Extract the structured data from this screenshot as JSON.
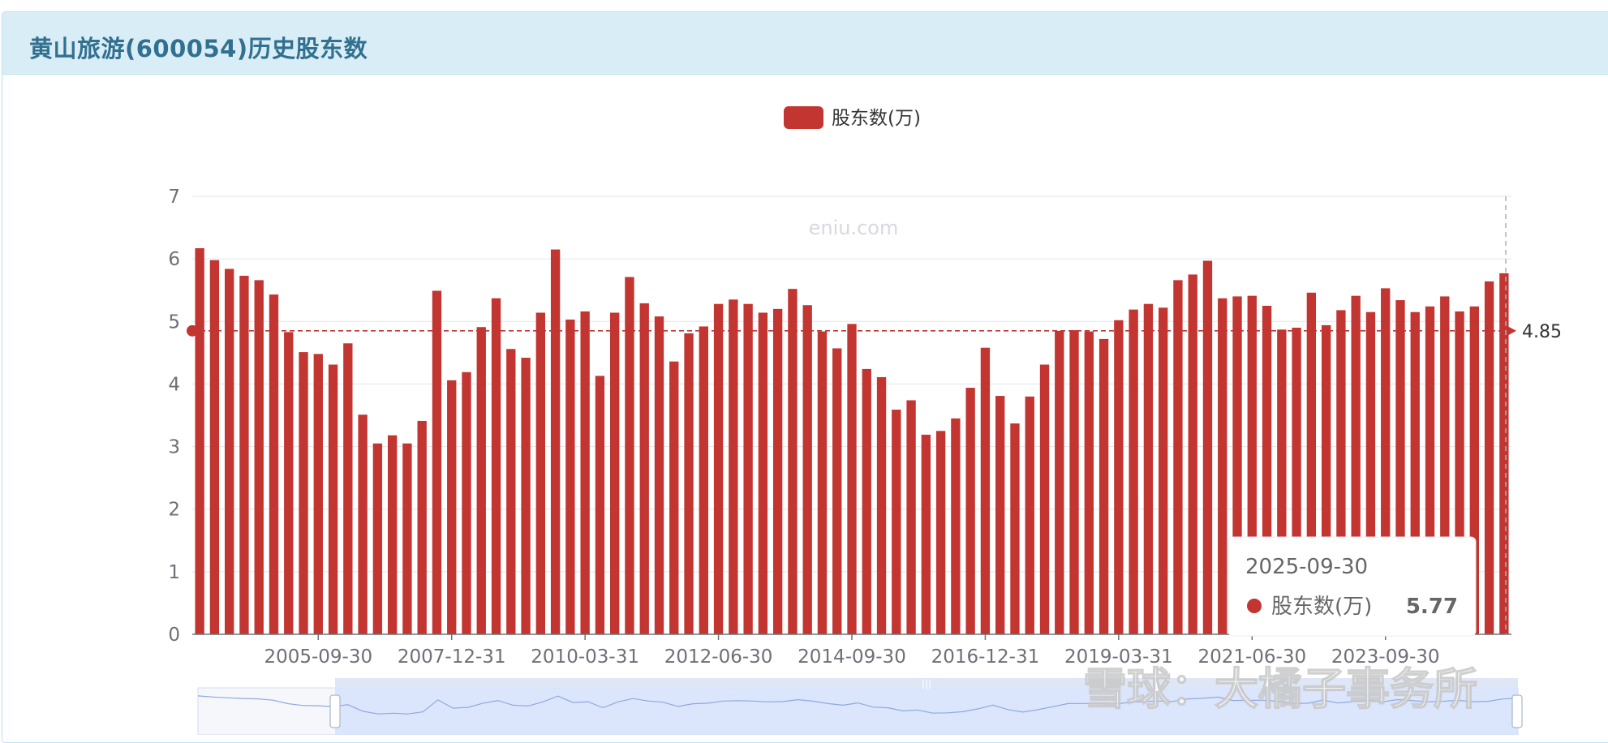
{
  "panel": {
    "title": "黄山旅游(600054)历史股东数"
  },
  "watermark_text": "eniu.com",
  "brand_watermark": "雪球：大橘子事务所",
  "colors": {
    "bar": "#c23531",
    "header_bg": "#d9edf7",
    "title": "#31708f",
    "grid": "#e0e6f1",
    "zoom_fill": "#d6e2fb"
  },
  "tooltip": {
    "date": "2025-09-30",
    "series": "股东数(万)",
    "value": "5.77"
  },
  "chart_data": {
    "type": "bar",
    "legend": [
      "股东数(万)"
    ],
    "legend_position": "top-center",
    "ylim": [
      0,
      7
    ],
    "yticks": [
      "0",
      "1",
      "2",
      "3",
      "4",
      "5",
      "6",
      "7"
    ],
    "xticks": [
      "2005-09-30",
      "2007-12-31",
      "2010-03-31",
      "2012-06-30",
      "2014-09-30",
      "2016-12-31",
      "2019-03-31",
      "2021-06-30",
      "2023-09-30"
    ],
    "grid": true,
    "mark_line": {
      "value": 4.85,
      "label": "4.85"
    },
    "series": [
      {
        "name": "股东数(万)",
        "values": [
          6.17,
          5.98,
          5.84,
          5.73,
          5.66,
          5.43,
          4.83,
          4.51,
          4.48,
          4.31,
          4.65,
          3.51,
          3.05,
          3.18,
          3.05,
          3.41,
          5.49,
          4.06,
          4.19,
          4.91,
          5.37,
          4.56,
          4.42,
          5.14,
          6.15,
          5.03,
          5.16,
          4.13,
          5.14,
          5.71,
          5.29,
          5.08,
          4.36,
          4.81,
          4.92,
          5.28,
          5.35,
          5.28,
          5.14,
          5.2,
          5.52,
          5.26,
          4.84,
          4.57,
          4.96,
          4.24,
          4.11,
          3.59,
          3.74,
          3.19,
          3.25,
          3.45,
          3.94,
          4.58,
          3.81,
          3.37,
          3.8,
          4.31,
          4.85,
          4.86,
          4.84,
          4.72,
          5.02,
          5.19,
          5.28,
          5.22,
          5.66,
          5.75,
          5.97,
          5.37,
          5.4,
          5.41,
          5.25,
          4.87,
          4.9,
          5.46,
          4.94,
          5.18,
          5.41,
          5.15,
          5.53,
          5.34,
          5.15,
          5.24,
          5.4,
          5.16,
          5.24,
          5.64,
          5.77
        ]
      }
    ]
  }
}
